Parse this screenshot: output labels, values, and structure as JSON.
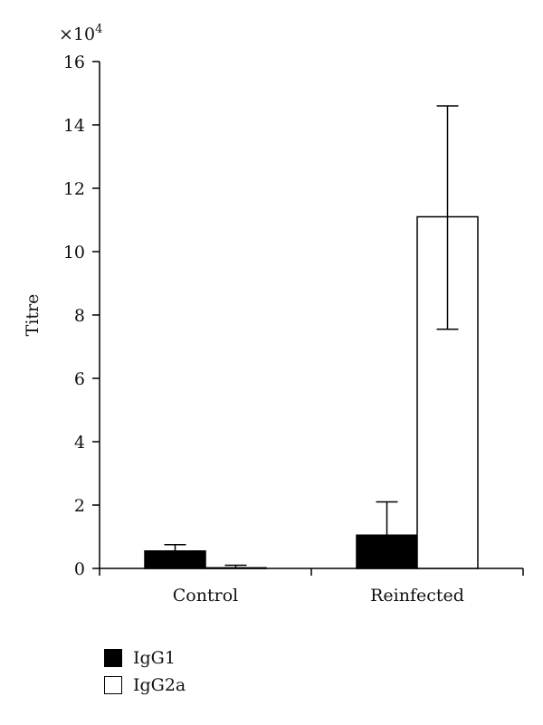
{
  "chart_data": {
    "type": "bar",
    "title": "",
    "xlabel": "",
    "ylabel": "Titre",
    "y_multiplier_label": "×10",
    "y_multiplier_exp": "4",
    "ylim": [
      0,
      16
    ],
    "yticks": [
      0,
      2,
      4,
      6,
      8,
      10,
      12,
      14,
      16
    ],
    "categories": [
      "Control",
      "Reinfected"
    ],
    "series": [
      {
        "name": "IgG1",
        "color": "#000000",
        "values": [
          0.55,
          1.05
        ],
        "error_upper": [
          0.75,
          2.1
        ]
      },
      {
        "name": "IgG2a",
        "color": "#ffffff",
        "values": [
          0.02,
          11.1
        ],
        "error_upper": [
          0.1,
          14.6
        ],
        "error_lower": [
          null,
          7.55
        ]
      }
    ],
    "grid": false,
    "legend_position": "bottom-left"
  }
}
